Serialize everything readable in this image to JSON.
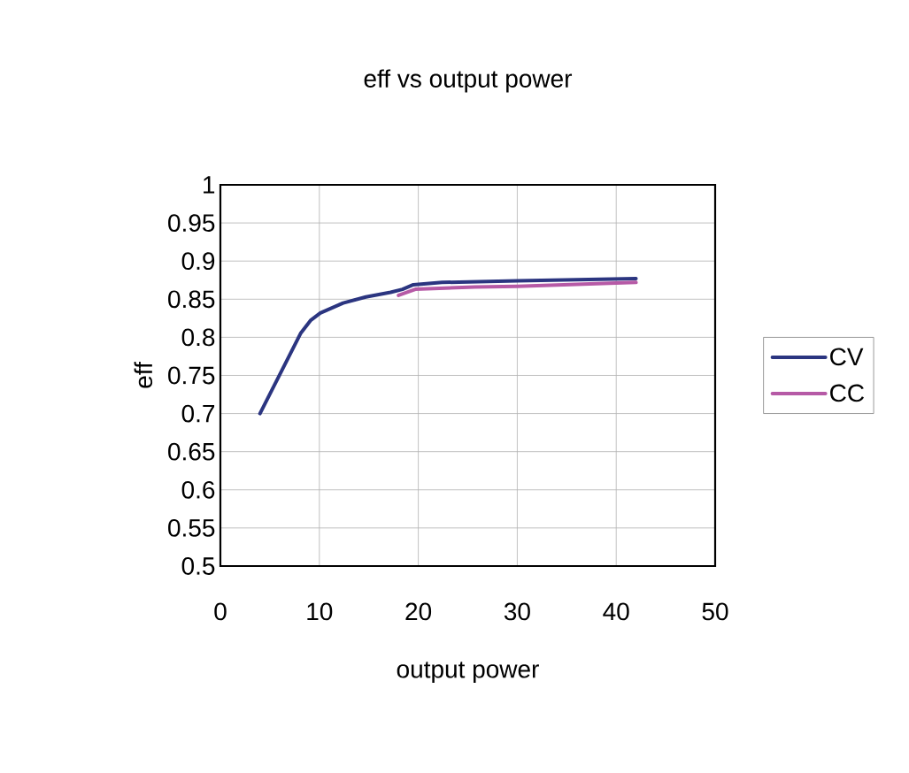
{
  "chart_data": {
    "type": "line",
    "title": "eff vs output power",
    "xlabel": "output power",
    "ylabel": "eff",
    "xlim": [
      0,
      50
    ],
    "xticks": [
      0,
      10,
      20,
      30,
      40,
      50
    ],
    "ylim": [
      0.5,
      1
    ],
    "yticks": [
      0.5,
      0.55,
      0.6,
      0.65,
      0.7,
      0.75,
      0.8,
      0.85,
      0.9,
      0.95,
      1
    ],
    "grid": true,
    "legend": "right",
    "series": [
      {
        "name": "CV",
        "color": "#2b3580",
        "x": [
          4,
          8.1,
          9.1,
          10.1,
          12.4,
          14.7,
          17.2,
          18.4,
          19.5,
          22.4,
          30,
          42
        ],
        "values": [
          0.7,
          0.805,
          0.822,
          0.832,
          0.845,
          0.853,
          0.859,
          0.863,
          0.869,
          0.872,
          0.874,
          0.877
        ]
      },
      {
        "name": "CC",
        "color": "#b65aa6",
        "x": [
          18,
          19.7,
          25.7,
          30,
          42
        ],
        "values": [
          0.855,
          0.863,
          0.866,
          0.867,
          0.872
        ]
      }
    ]
  }
}
